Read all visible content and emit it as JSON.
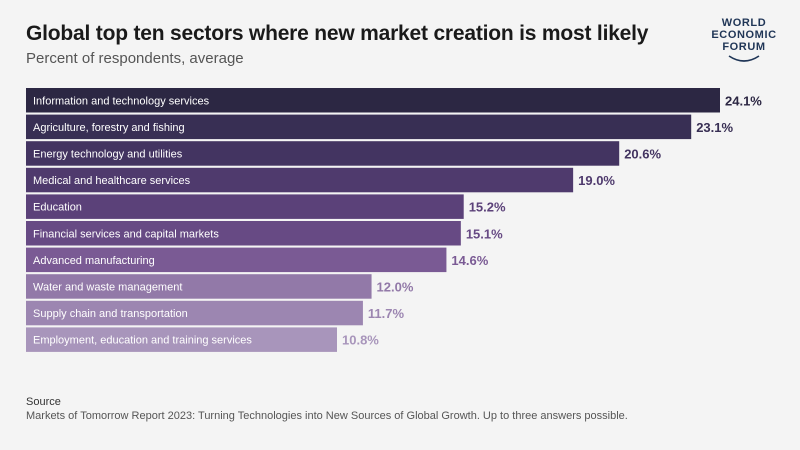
{
  "title": "Global top ten sectors where new market creation is most likely",
  "subtitle": "Percent of respondents, average",
  "logo": {
    "lines": [
      "WORLD",
      "ECONOMIC",
      "FORUM"
    ]
  },
  "source": {
    "heading": "Source",
    "text": "Markets of Tomorrow Report 2023: Turning Technologies into New Sources of Global Growth. Up to three answers possible."
  },
  "chart_data": {
    "type": "bar",
    "orientation": "horizontal",
    "title": "Global top ten sectors where new market creation is most likely",
    "subtitle": "Percent of respondents, average",
    "categories": [
      "Information and technology services",
      "Agriculture, forestry and fishing",
      "Energy technology and utilities",
      "Medical and healthcare services",
      "Education",
      "Financial services and capital markets",
      "Advanced manufacturing",
      "Water and waste management",
      "Supply chain and transportation",
      "Employment, education and training services"
    ],
    "values": [
      24.1,
      23.1,
      20.6,
      19.0,
      15.2,
      15.1,
      14.6,
      12.0,
      11.7,
      10.8
    ],
    "value_labels": [
      "24.1%",
      "23.1%",
      "20.6%",
      "19.0%",
      "15.2%",
      "15.1%",
      "14.6%",
      "12.0%",
      "11.7%",
      "10.8%"
    ],
    "bar_colors": [
      "#2c2743",
      "#382f54",
      "#433461",
      "#4f3a6d",
      "#5b4179",
      "#674a84",
      "#7a5a94",
      "#9279a8",
      "#9c86b1",
      "#a895bb"
    ],
    "label_colors": [
      "#2c2743",
      "#382f54",
      "#433461",
      "#4f3a6d",
      "#5b4179",
      "#674a84",
      "#7a5a94",
      "#9279a8",
      "#9c86b1",
      "#a895bb"
    ],
    "xlim": [
      0,
      24.1
    ],
    "xlabel": "",
    "ylabel": "",
    "grid": false,
    "legend": "none"
  }
}
